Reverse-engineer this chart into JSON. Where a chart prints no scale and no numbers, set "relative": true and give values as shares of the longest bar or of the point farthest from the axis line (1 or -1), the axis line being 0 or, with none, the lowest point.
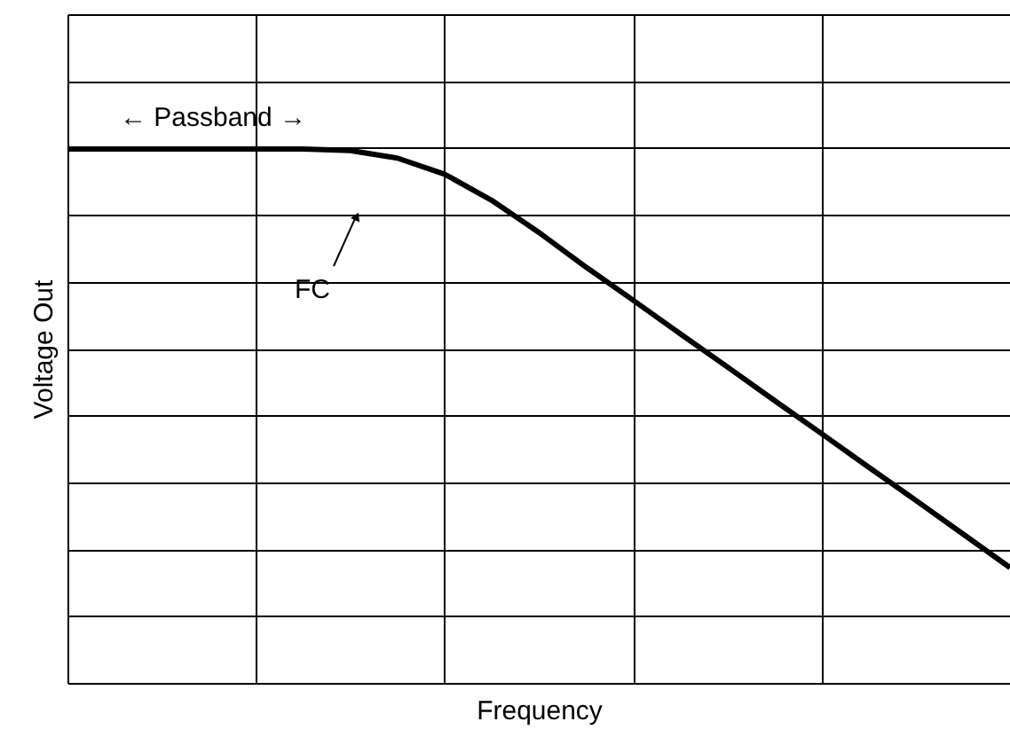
{
  "chart_data": {
    "type": "line",
    "relative": true,
    "xlabel": "Frequency",
    "ylabel": "Voltage Out",
    "categories": [
      null,
      null,
      null,
      null,
      null,
      null,
      null,
      null,
      null,
      null,
      null,
      null,
      null,
      null,
      null,
      null,
      null,
      null,
      null,
      null,
      null
    ],
    "series": [
      {
        "color": "#000000",
        "values": [
          1,
          1,
          1,
          1,
          1,
          1,
          0.997,
          0.983,
          0.953,
          0.904,
          0.844,
          0.779,
          0.717,
          0.654,
          0.592,
          0.529,
          0.467,
          0.404,
          0.342,
          0.279,
          0.216
        ]
      }
    ],
    "annotations": [
      "← Passband →",
      "FC"
    ],
    "grid": true,
    "tick_labels": false
  }
}
